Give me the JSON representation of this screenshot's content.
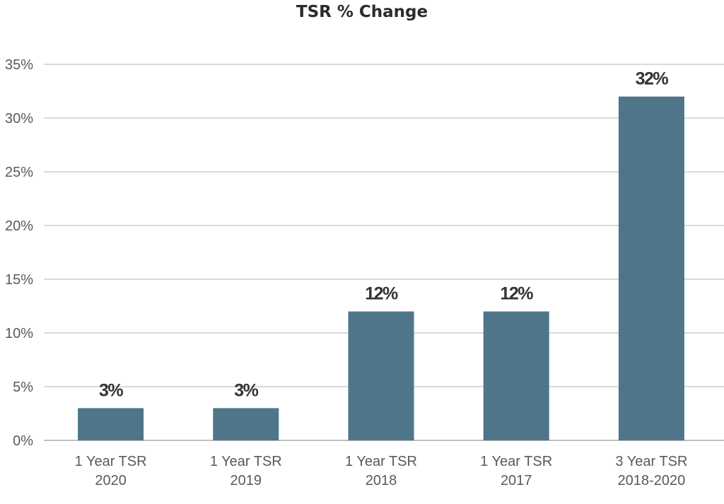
{
  "chart_data": {
    "type": "bar",
    "title": "TSR % Change",
    "xlabel": "",
    "ylabel": "",
    "categories": [
      [
        "1 Year TSR",
        "2020"
      ],
      [
        "1 Year TSR",
        "2019"
      ],
      [
        "1 Year TSR",
        "2018"
      ],
      [
        "1 Year TSR",
        "2017"
      ],
      [
        "3 Year TSR",
        "2018-2020"
      ]
    ],
    "values": [
      3,
      3,
      12,
      12,
      32
    ],
    "data_labels": [
      "3%",
      "3%",
      "12%",
      "12%",
      "32%"
    ],
    "ylim": [
      0,
      35
    ],
    "yticks": [
      0,
      5,
      10,
      15,
      20,
      25,
      30,
      35
    ],
    "ytick_labels": [
      "0%",
      "5%",
      "10%",
      "15%",
      "20%",
      "25%",
      "30%",
      "35%"
    ],
    "grid": true,
    "legend": "none",
    "bar_color": "#4f758b"
  }
}
